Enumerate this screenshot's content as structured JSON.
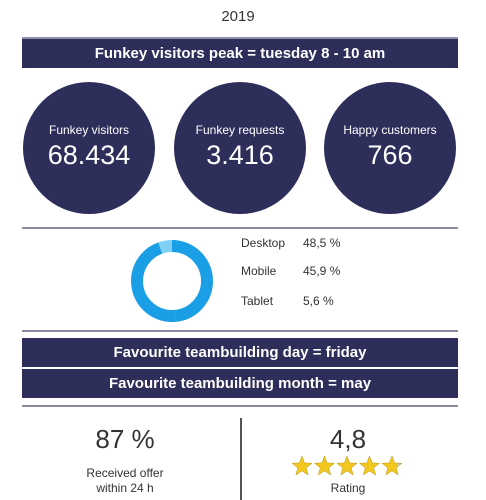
{
  "year": "2019",
  "peak_banner": "Funkey visitors peak = tuesday 8 - 10 am",
  "stats": [
    {
      "label": "Funkey visitors",
      "value": "68.434"
    },
    {
      "label": "Funkey requests",
      "value": "3.416"
    },
    {
      "label": "Happy customers",
      "value": "766"
    }
  ],
  "devices": [
    {
      "name": "Desktop",
      "share": "48,5 %",
      "percent": 48.5
    },
    {
      "name": "Mobile",
      "share": "45,9 %",
      "percent": 45.9
    },
    {
      "name": "Tablet",
      "share": "5,6 %",
      "percent": 5.6
    }
  ],
  "fav_day": "Favourite teambuilding day = friday",
  "fav_month": "Favourite teambuilding month = may",
  "offer": {
    "value": "87 %",
    "label_line1": "Received offer",
    "label_line2": "within 24 h"
  },
  "rating": {
    "value": "4,8",
    "stars": 4.8,
    "max": 5,
    "label": "Rating"
  },
  "colors": {
    "navy": "#2e2e5a",
    "donut_main": "#1a9fe6",
    "donut_light": "#7fd0f2",
    "star_filled": "#f2c81e",
    "star_empty": "#c8c8c8"
  }
}
